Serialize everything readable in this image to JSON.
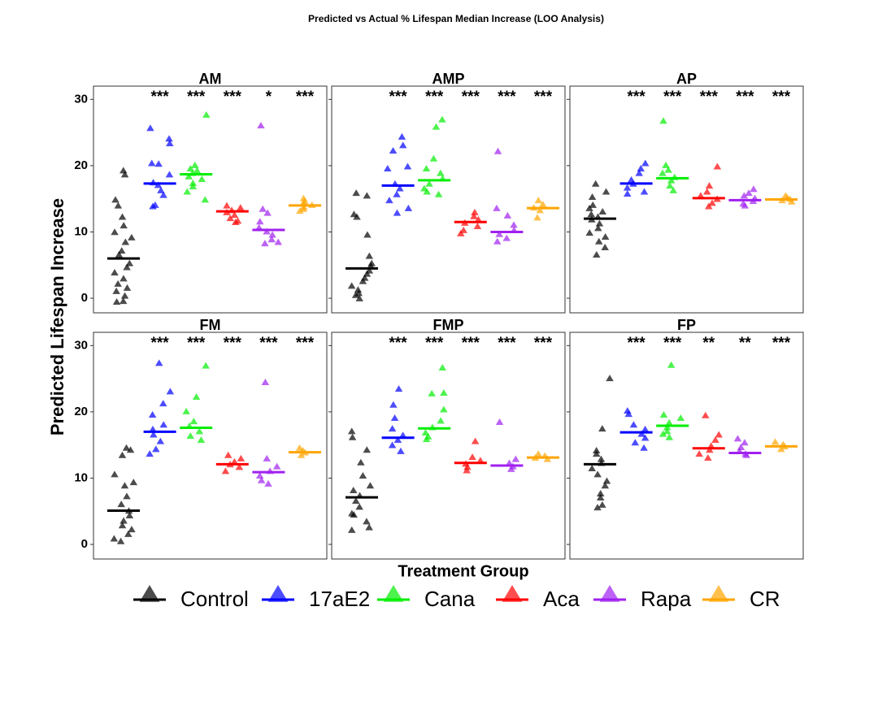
{
  "chart_data": {
    "type": "strip",
    "title": "Predicted vs Actual % Lifespan Median Increase (LOO Analysis)",
    "x_label": "Treatment Group",
    "y_label": "Predicted Lifespan Increase",
    "groups": [
      {
        "name": "Control",
        "color": "#000000"
      },
      {
        "name": "17aE2",
        "color": "#0000FF"
      },
      {
        "name": "Cana",
        "color": "#00EE00"
      },
      {
        "name": "Aca",
        "color": "#FF0000"
      },
      {
        "name": "Rapa",
        "color": "#A020F0"
      },
      {
        "name": "CR",
        "color": "#FFA500"
      }
    ],
    "panels": [
      {
        "title": "AM",
        "ylim": [
          -2.2,
          32
        ],
        "yticks": [
          0,
          10,
          20,
          30
        ],
        "points": [
          [
            19.2,
            18.6,
            14.8,
            13.9,
            12.2,
            10.9,
            9.9,
            9.1,
            8.4,
            7.1,
            6.5,
            5.2,
            4.6,
            3.8,
            2.9,
            2.1,
            1.5,
            1.0,
            0.3,
            -0.5,
            -0.6
          ],
          [
            25.6,
            24.0,
            23.3,
            20.3,
            20.2,
            18.6,
            17.4,
            17.0,
            16.2,
            15.5,
            14.0,
            13.8
          ],
          [
            27.6,
            20.0,
            19.5,
            19.2,
            18.8,
            18.3,
            17.9,
            17.3,
            16.8,
            16.0,
            14.8
          ],
          [
            13.9,
            13.6,
            13.2,
            12.9,
            12.5,
            12.0,
            11.6,
            11.4
          ],
          [
            26.0,
            13.4,
            12.8,
            11.5,
            10.6,
            10.0,
            9.5,
            8.8,
            8.4,
            8.2
          ],
          [
            15.0,
            14.6,
            14.3,
            14.0,
            13.7,
            13.4,
            13.1
          ]
        ],
        "medians": [
          6.0,
          17.3,
          18.7,
          13.1,
          10.3,
          14.0
        ],
        "significance": [
          null,
          "***",
          "***",
          "***",
          "*",
          "***"
        ]
      },
      {
        "title": "AMP",
        "ylim": [
          -2.2,
          32
        ],
        "yticks": [
          0,
          10,
          20,
          30
        ],
        "points": [
          [
            15.8,
            15.4,
            12.6,
            12.2,
            9.5,
            6.3,
            5.2,
            4.8,
            4.1,
            3.6,
            3.0,
            2.5,
            1.8,
            1.2,
            0.7,
            0.4,
            -0.1
          ],
          [
            24.3,
            23.0,
            22.2,
            19.8,
            19.5,
            17.2,
            16.5,
            15.6,
            14.7,
            13.5,
            12.8
          ],
          [
            26.9,
            25.8,
            21.0,
            19.5,
            18.8,
            18.0,
            17.2,
            16.5,
            16.0,
            15.6
          ],
          [
            12.9,
            12.3,
            11.8,
            11.3,
            10.8,
            10.2,
            9.7
          ],
          [
            22.1,
            13.5,
            12.4,
            11.0,
            10.2,
            9.6,
            9.0,
            8.5
          ],
          [
            14.7,
            14.1,
            13.6,
            13.2,
            12.1
          ]
        ],
        "medians": [
          4.5,
          17.0,
          17.8,
          11.5,
          10.0,
          13.6
        ],
        "significance": [
          null,
          "***",
          "***",
          "***",
          "***",
          "***"
        ]
      },
      {
        "title": "AP",
        "ylim": [
          -2.2,
          32
        ],
        "yticks": [
          0,
          10,
          20,
          30
        ],
        "points": [
          [
            17.2,
            16.0,
            15.2,
            14.0,
            13.5,
            13.0,
            12.6,
            12.2,
            11.8,
            11.2,
            10.5,
            9.8,
            9.2,
            8.5,
            7.6,
            6.5
          ],
          [
            20.3,
            19.5,
            18.8,
            17.8,
            17.2,
            16.6,
            16.0,
            15.7
          ],
          [
            26.7,
            20.0,
            19.3,
            18.8,
            18.2,
            17.7,
            16.9,
            16.2
          ],
          [
            19.8,
            16.9,
            16.0,
            15.4,
            14.9,
            14.3,
            13.8
          ],
          [
            16.4,
            15.8,
            15.4,
            15.0,
            14.6,
            14.2,
            13.9
          ],
          [
            15.4,
            15.1,
            14.9,
            14.7,
            14.5
          ]
        ],
        "medians": [
          12.0,
          17.3,
          18.1,
          15.1,
          14.8,
          14.9
        ],
        "significance": [
          null,
          "***",
          "***",
          "***",
          "***",
          "***"
        ]
      },
      {
        "title": "FM",
        "ylim": [
          -2.2,
          32
        ],
        "yticks": [
          0,
          10,
          20,
          30
        ],
        "points": [
          [
            14.5,
            14.2,
            13.4,
            10.5,
            9.3,
            8.8,
            7.2,
            6.0,
            5.0,
            4.3,
            3.5,
            2.8,
            2.2,
            1.5,
            0.8,
            0.4
          ],
          [
            27.3,
            23.0,
            21.2,
            19.5,
            18.0,
            17.3,
            16.5,
            15.5,
            14.3,
            13.6
          ],
          [
            26.9,
            22.2,
            20.0,
            18.5,
            17.8,
            17.0,
            16.3,
            15.7
          ],
          [
            13.4,
            12.9,
            12.4,
            12.0,
            11.6,
            11.0
          ],
          [
            24.4,
            12.9,
            11.7,
            11.0,
            10.3,
            9.6,
            9.1
          ],
          [
            14.5,
            14.1,
            13.8,
            13.4
          ]
        ],
        "medians": [
          5.1,
          17.0,
          17.6,
          12.1,
          10.9,
          13.9
        ],
        "significance": [
          null,
          "***",
          "***",
          "***",
          "***",
          "***"
        ]
      },
      {
        "title": "FMP",
        "ylim": [
          -2.2,
          32
        ],
        "yticks": [
          0,
          10,
          20,
          30
        ],
        "points": [
          [
            17.0,
            16.1,
            14.2,
            12.3,
            10.3,
            8.8,
            8.1,
            7.3,
            6.5,
            5.6,
            4.6,
            4.4,
            3.4,
            2.5,
            2.1
          ],
          [
            23.4,
            21.0,
            19.0,
            17.4,
            16.4,
            15.7,
            14.9,
            14.0
          ],
          [
            26.6,
            22.8,
            22.7,
            20.3,
            18.6,
            17.6,
            16.8,
            16.2,
            15.8
          ],
          [
            15.5,
            13.1,
            12.6,
            12.1,
            11.6,
            11.1
          ],
          [
            18.4,
            12.8,
            12.2,
            11.7,
            11.3
          ],
          [
            13.6,
            13.3,
            13.0,
            12.8
          ]
        ],
        "medians": [
          7.1,
          16.1,
          17.5,
          12.3,
          11.9,
          13.1
        ],
        "significance": [
          null,
          "***",
          "***",
          "***",
          "***",
          "***"
        ]
      },
      {
        "title": "FP",
        "ylim": [
          -2.2,
          32
        ],
        "yticks": [
          0,
          10,
          20,
          30
        ],
        "points": [
          [
            25.0,
            17.4,
            14.1,
            13.6,
            12.8,
            12.2,
            11.4,
            10.5,
            9.5,
            8.8,
            7.6,
            7.0,
            5.9,
            5.5
          ],
          [
            20.1,
            19.6,
            18.0,
            17.3,
            16.6,
            16.0,
            15.3,
            14.5
          ],
          [
            27.0,
            19.5,
            19.0,
            18.3,
            17.6,
            17.0,
            16.6,
            16.1
          ],
          [
            19.4,
            16.5,
            15.7,
            14.8,
            14.2,
            13.6,
            13.0
          ],
          [
            15.9,
            15.3,
            14.6,
            14.0,
            13.6,
            13.4
          ],
          [
            15.4,
            15.0,
            14.7,
            14.3
          ]
        ],
        "medians": [
          12.1,
          16.9,
          17.9,
          14.5,
          13.8,
          14.8
        ],
        "significance": [
          null,
          "***",
          "***",
          "**",
          "**",
          "***"
        ]
      }
    ]
  }
}
